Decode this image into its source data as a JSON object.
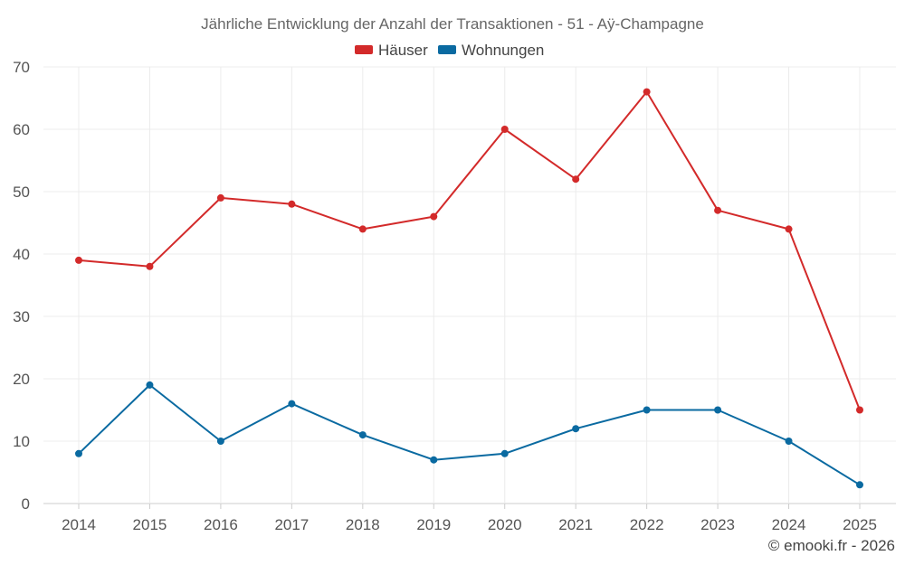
{
  "chart_data": {
    "type": "line",
    "title": "Jährliche Entwicklung der Anzahl der Transaktionen - 51 - Aÿ-Champagne",
    "categories": [
      "2014",
      "2015",
      "2016",
      "2017",
      "2018",
      "2019",
      "2020",
      "2021",
      "2022",
      "2023",
      "2024",
      "2025"
    ],
    "series": [
      {
        "name": "Häuser",
        "color": "#d32a2a",
        "values": [
          39,
          38,
          49,
          48,
          44,
          46,
          60,
          52,
          66,
          47,
          44,
          15
        ]
      },
      {
        "name": "Wohnungen",
        "color": "#0a6aa1",
        "values": [
          8,
          19,
          10,
          16,
          11,
          7,
          8,
          12,
          15,
          15,
          10,
          3
        ]
      }
    ],
    "ylim": [
      0,
      70
    ],
    "yticks": [
      0,
      10,
      20,
      30,
      40,
      50,
      60,
      70
    ],
    "xlabel": "",
    "ylabel": "",
    "grid": true,
    "legend_position": "top-center"
  },
  "credit": "© emooki.fr - 2026"
}
